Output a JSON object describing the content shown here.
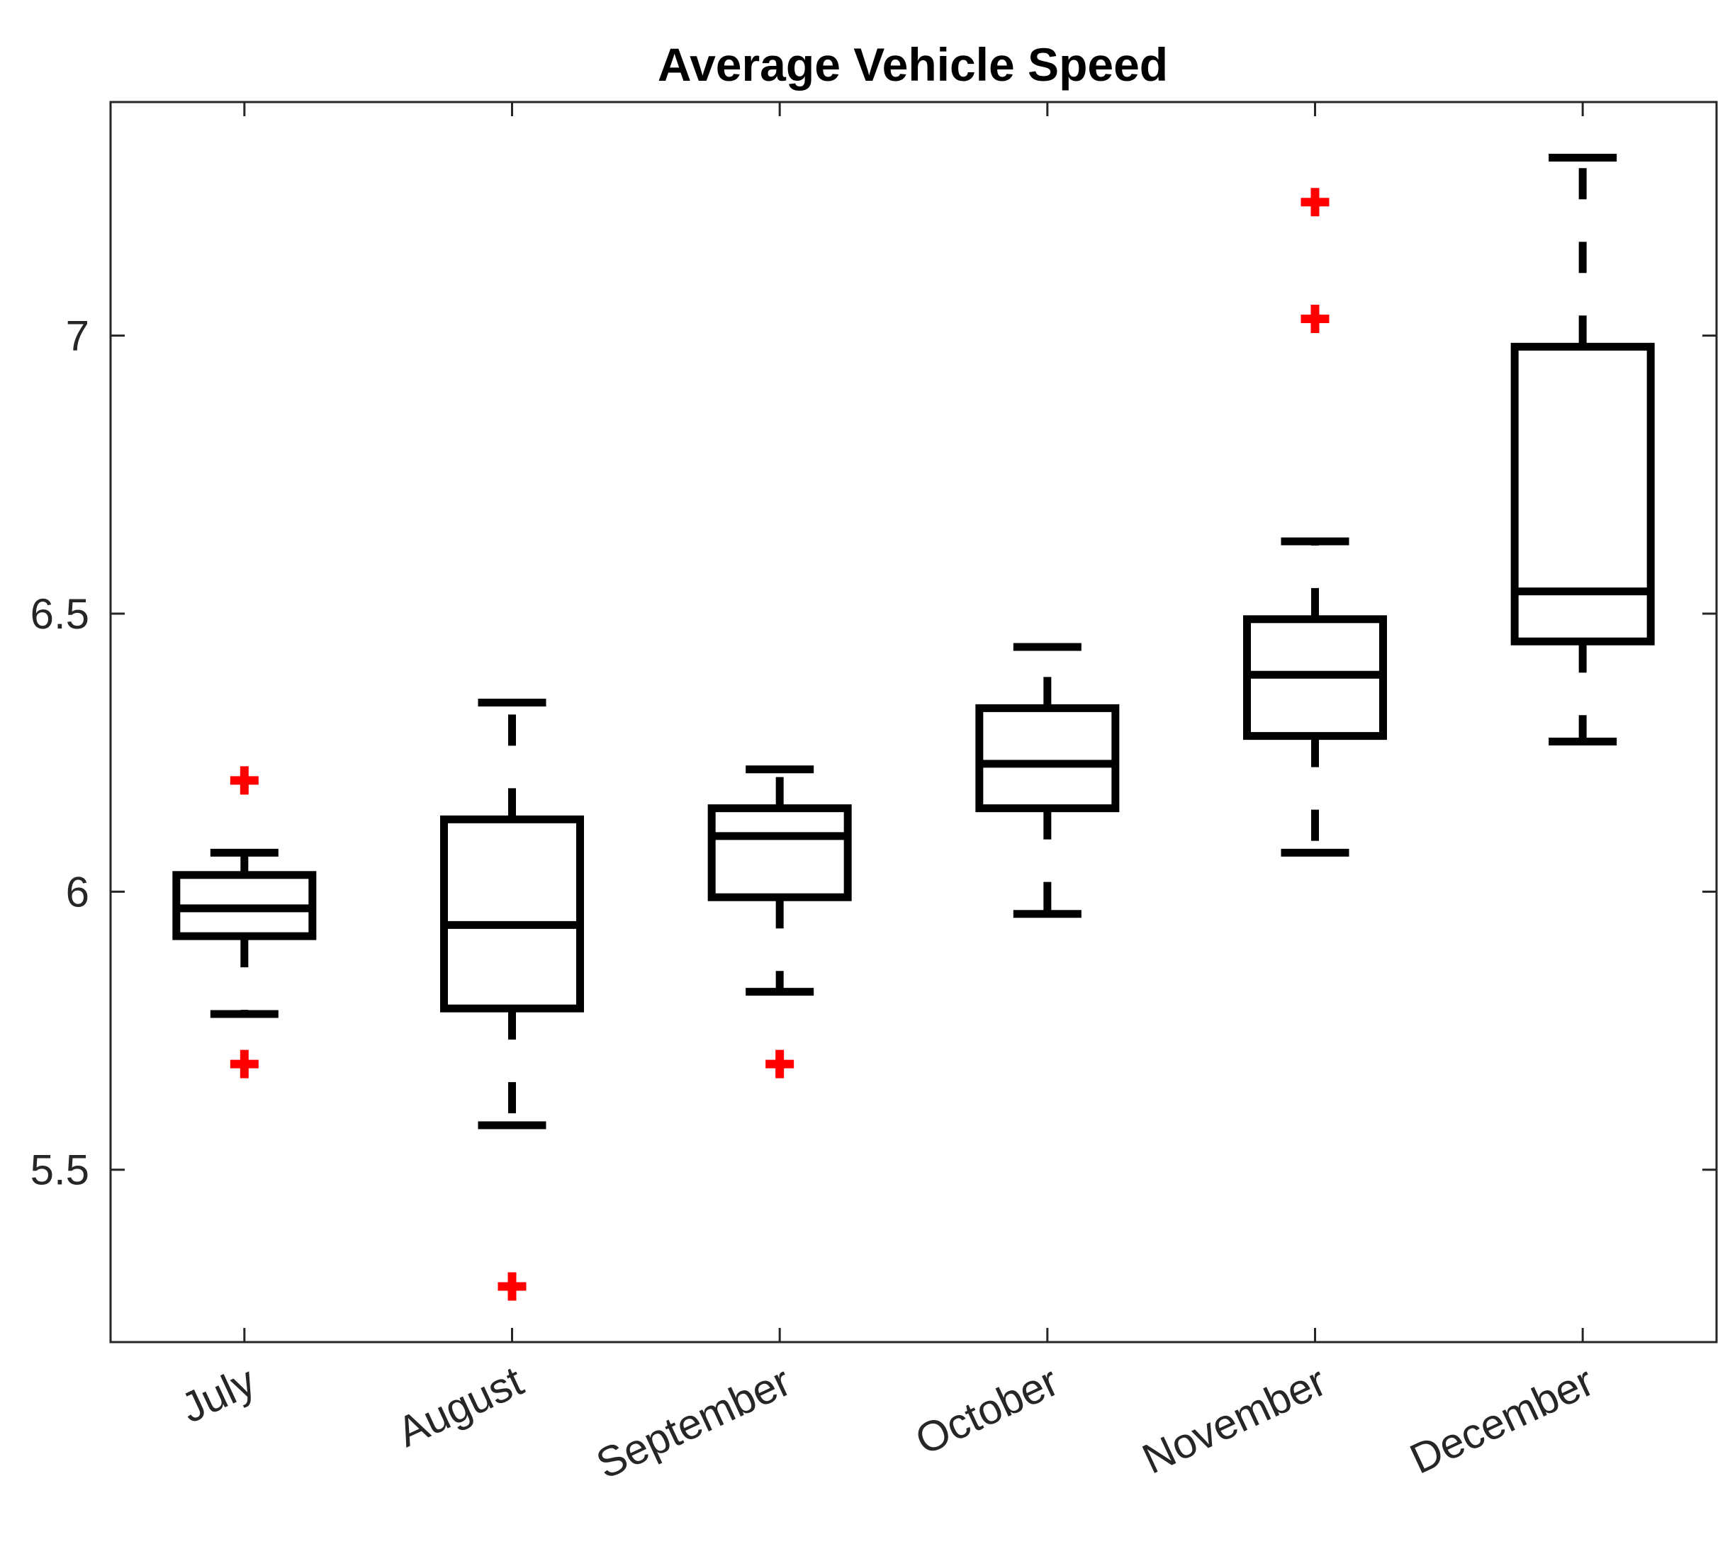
{
  "chart_data": {
    "type": "boxplot",
    "title": "Average Vehicle Speed",
    "xlabel": "",
    "ylabel": "",
    "ylim": [
      5.19,
      7.42
    ],
    "yticks": [
      5.5,
      6,
      6.5,
      7
    ],
    "ytick_labels": [
      "5.5",
      "6",
      "6.5",
      "7"
    ],
    "grid": false,
    "categories": [
      "July",
      "August",
      "September",
      "October",
      "November",
      "December"
    ],
    "boxes": [
      {
        "category": "July",
        "whisker_low": 5.78,
        "q1": 5.92,
        "median": 5.97,
        "q3": 6.03,
        "whisker_high": 6.07,
        "outliers": [
          5.69,
          6.2
        ]
      },
      {
        "category": "August",
        "whisker_low": 5.58,
        "q1": 5.79,
        "median": 5.94,
        "q3": 6.13,
        "whisker_high": 6.34,
        "outliers": [
          5.29
        ]
      },
      {
        "category": "September",
        "whisker_low": 5.82,
        "q1": 5.99,
        "median": 6.1,
        "q3": 6.15,
        "whisker_high": 6.22,
        "outliers": [
          5.69
        ]
      },
      {
        "category": "October",
        "whisker_low": 5.96,
        "q1": 6.15,
        "median": 6.23,
        "q3": 6.33,
        "whisker_high": 6.44,
        "outliers": []
      },
      {
        "category": "November",
        "whisker_low": 6.07,
        "q1": 6.28,
        "median": 6.39,
        "q3": 6.49,
        "whisker_high": 6.63,
        "outliers": [
          7.03,
          7.24
        ]
      },
      {
        "category": "December",
        "whisker_low": 6.27,
        "q1": 6.45,
        "median": 6.54,
        "q3": 6.98,
        "whisker_high": 7.32,
        "outliers": []
      }
    ],
    "colors": {
      "box": "#000000",
      "outlier": "#ff0000",
      "axis": "#262626"
    }
  }
}
